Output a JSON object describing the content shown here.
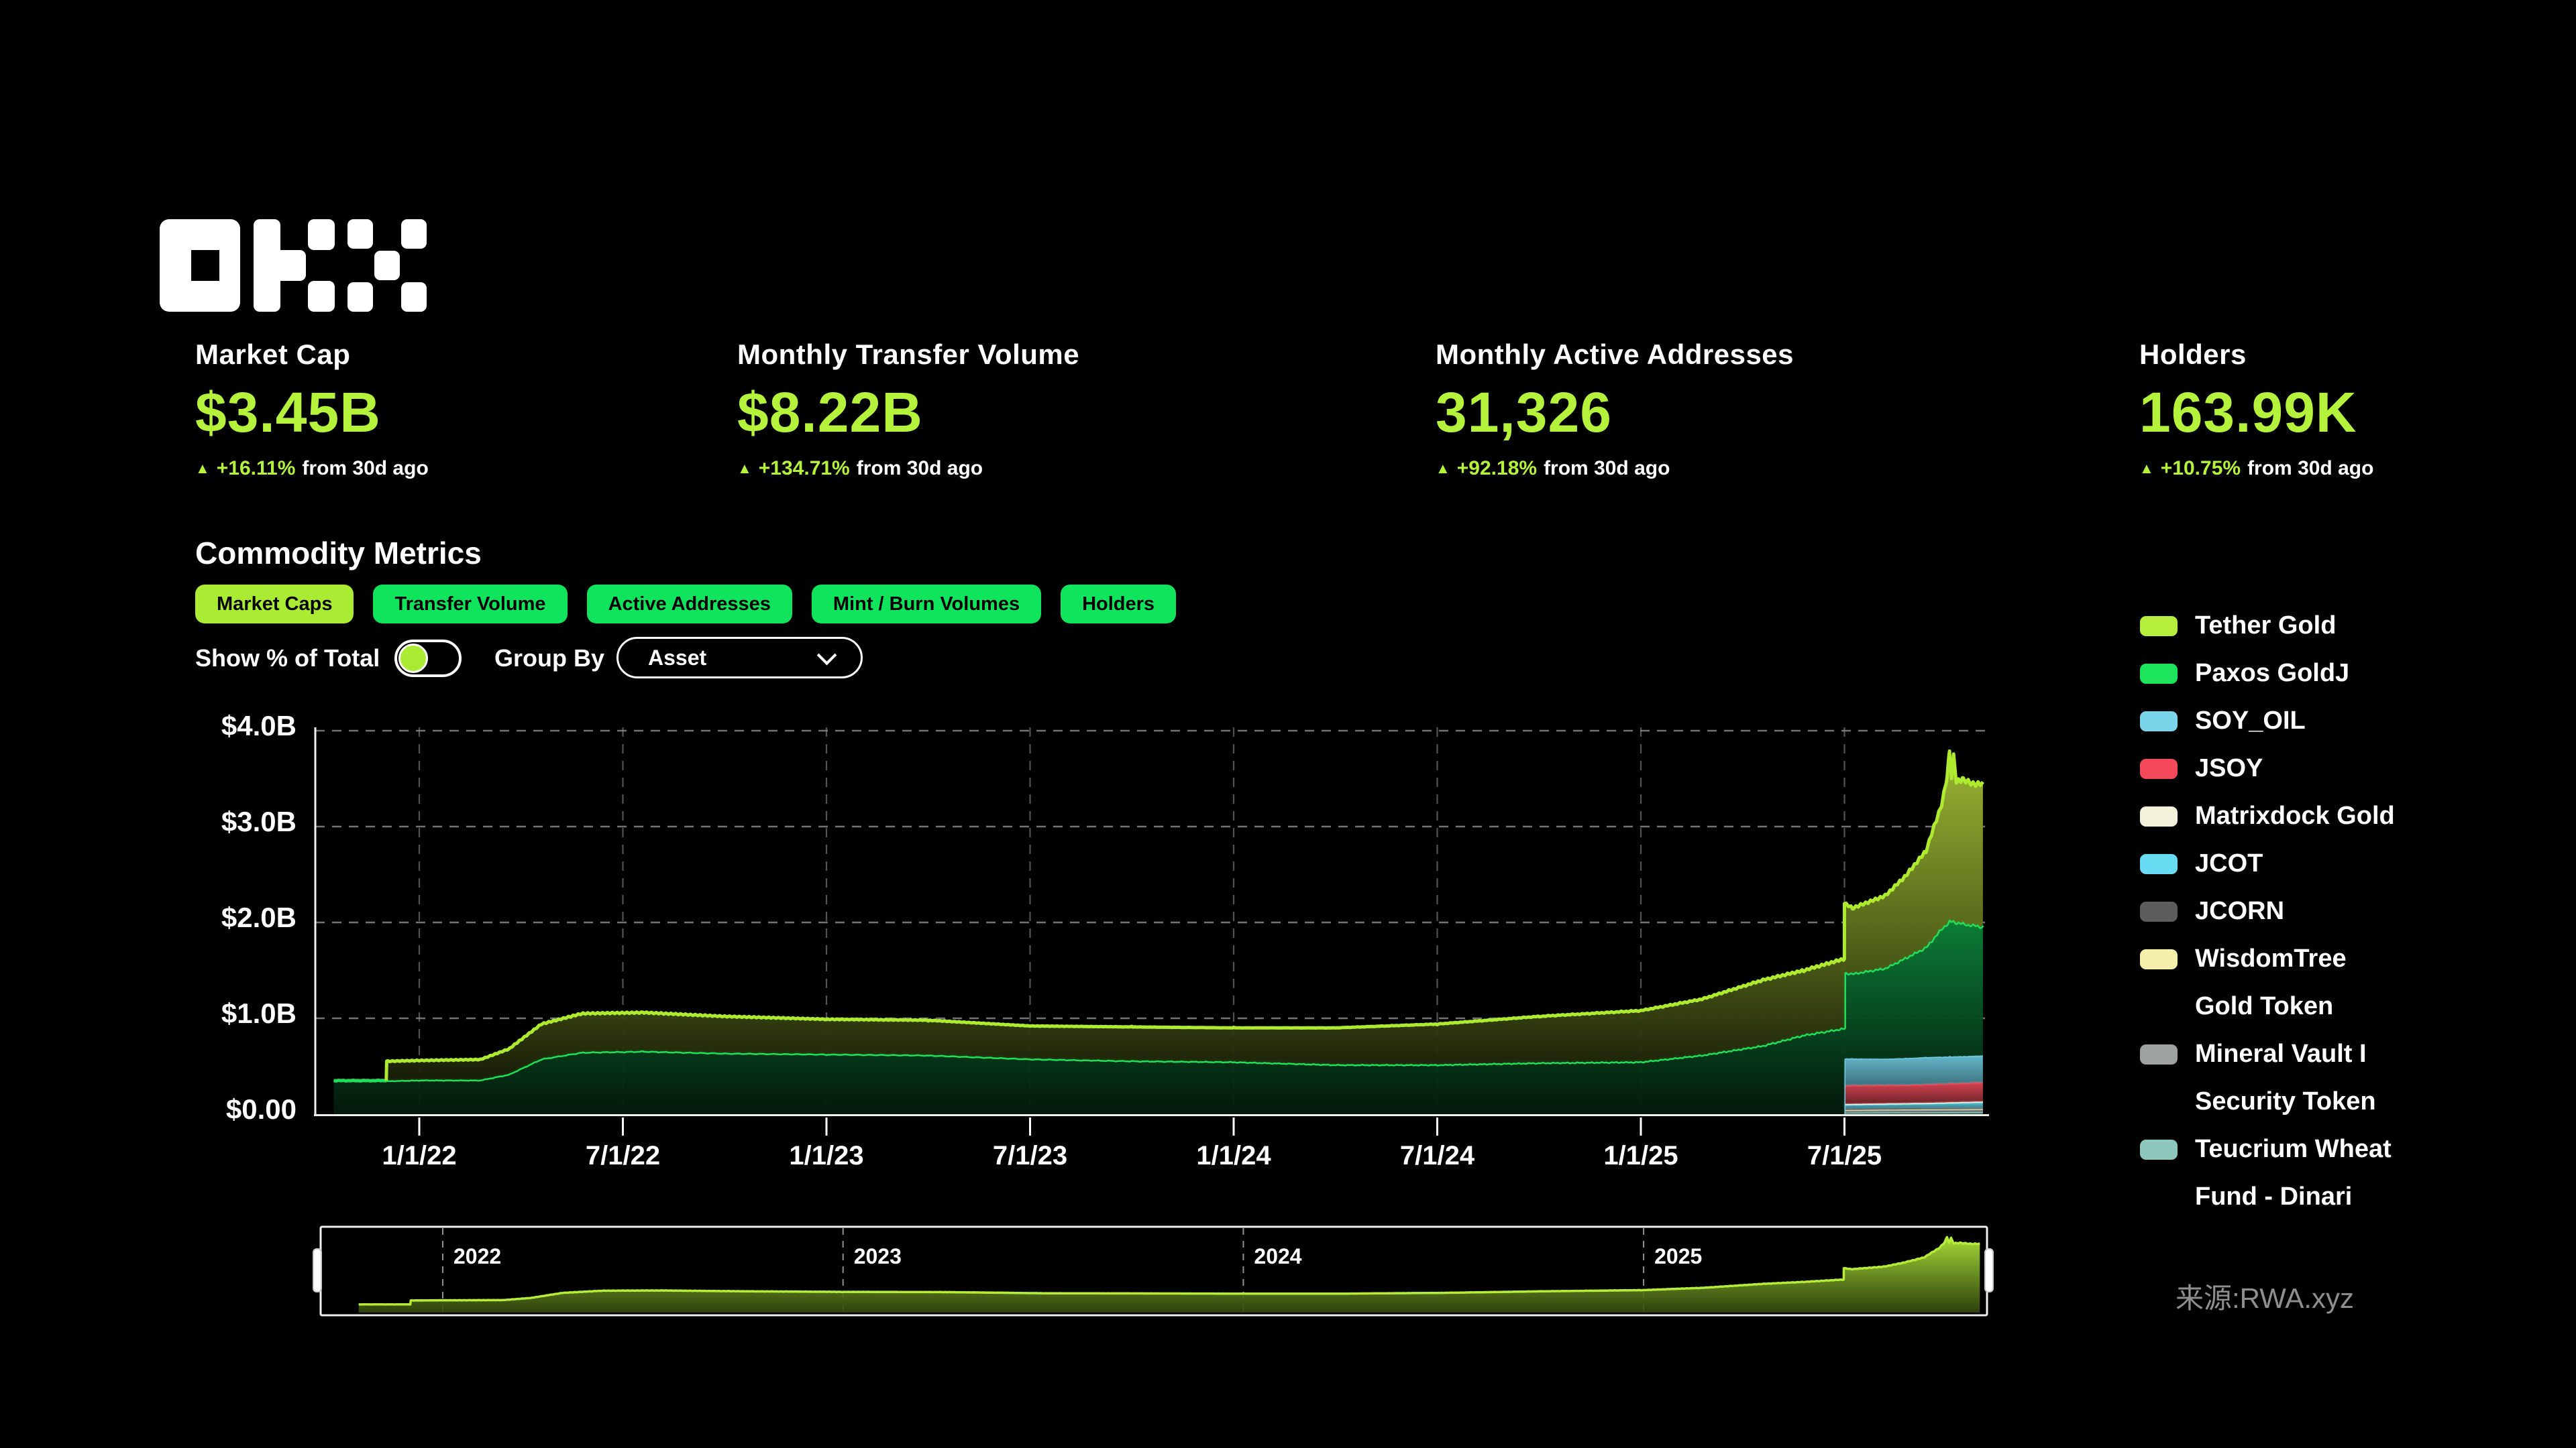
{
  "page": {
    "background": "#000000",
    "source_note": "来源:RWA.xyz"
  },
  "colors": {
    "lime": "#b5f23c",
    "tab_green": "#0fe45c",
    "tab_active": "#a9ec33",
    "muted": "#8f8f8f"
  },
  "stats": [
    {
      "label": "Market Cap",
      "value": "$3.45B",
      "delta": "+16.11%",
      "delta_suffix": "from 30d ago"
    },
    {
      "label": "Monthly Transfer Volume",
      "value": "$8.22B",
      "delta": "+134.71%",
      "delta_suffix": "from 30d ago"
    },
    {
      "label": "Monthly Active Addresses",
      "value": "31,326",
      "delta": "+92.18%",
      "delta_suffix": "from 30d ago"
    },
    {
      "label": "Holders",
      "value": "163.99K",
      "delta": "+10.75%",
      "delta_suffix": "from 30d ago"
    }
  ],
  "section": {
    "title": "Commodity Metrics"
  },
  "tabs": [
    {
      "label": "Market Caps",
      "active": true
    },
    {
      "label": "Transfer Volume",
      "active": false
    },
    {
      "label": "Active Addresses",
      "active": false
    },
    {
      "label": "Mint / Burn Volumes",
      "active": false
    },
    {
      "label": "Holders",
      "active": false
    }
  ],
  "controls": {
    "show_pct_label": "Show % of Total",
    "show_pct_on": false,
    "group_by_label": "Group By",
    "group_by_value": "Asset"
  },
  "legend": [
    {
      "label": "Tether Gold",
      "label2": "",
      "color": "#b5ee3d"
    },
    {
      "label": "Paxos GoldJ",
      "label2": "",
      "color": "#1ce45b"
    },
    {
      "label": "SOY_OIL",
      "label2": "",
      "color": "#7ad4ea"
    },
    {
      "label": "JSOY",
      "label2": "",
      "color": "#f3495b"
    },
    {
      "label": "Matrixdock Gold",
      "label2": "",
      "color": "#f4f1da"
    },
    {
      "label": "JCOT",
      "label2": "",
      "color": "#69dcf3"
    },
    {
      "label": "JCORN",
      "label2": "",
      "color": "#5d5d5d"
    },
    {
      "label": "WisdomTree",
      "label2": "Gold Token",
      "color": "#f4efab"
    },
    {
      "label": "Mineral Vault I",
      "label2": "Security Token",
      "color": "#9ea3a1"
    },
    {
      "label": "Teucrium Wheat",
      "label2": "Fund - Dinari",
      "color": "#8ec8bc"
    }
  ],
  "chart_data": {
    "type": "area",
    "stacked": true,
    "grid": true,
    "legend_position": "right",
    "unit": "USD billions (market cap)",
    "x_domain": [
      2021.79,
      2025.84
    ],
    "ylim": [
      0,
      4.2
    ],
    "noise_amplitude": 1,
    "y_ticks": [
      {
        "v": 0,
        "label": "$0.00"
      },
      {
        "v": 1,
        "label": "$1.0B"
      },
      {
        "v": 2,
        "label": "$2.0B"
      },
      {
        "v": 3,
        "label": "$3.0B"
      },
      {
        "v": 4,
        "label": "$4.0B"
      }
    ],
    "x_ticks": [
      {
        "t": 2022.0,
        "label": "1/1/22"
      },
      {
        "t": 2022.5,
        "label": "7/1/22"
      },
      {
        "t": 2023.0,
        "label": "1/1/23"
      },
      {
        "t": 2023.5,
        "label": "7/1/23"
      },
      {
        "t": 2024.0,
        "label": "1/1/24"
      },
      {
        "t": 2024.5,
        "label": "7/1/24"
      },
      {
        "t": 2025.0,
        "label": "1/1/25"
      },
      {
        "t": 2025.5,
        "label": "7/1/25"
      }
    ],
    "mini_year_ticks": [
      {
        "t": 2022,
        "label": "2022"
      },
      {
        "t": 2023,
        "label": "2023"
      },
      {
        "t": 2024,
        "label": "2024"
      },
      {
        "t": 2025,
        "label": "2025"
      }
    ],
    "series": [
      {
        "id": "teucrium",
        "name": "Teucrium Wheat Fund - Dinari",
        "color": "#8cc7bb",
        "noise": 0.02,
        "anchors": [
          [
            2025.4999,
            0
          ],
          [
            2025.5,
            0.017
          ],
          [
            2025.84,
            0.022
          ]
        ]
      },
      {
        "id": "mineral",
        "name": "Mineral Vault I Security Token",
        "color": "#9aa0a0",
        "noise": 0.02,
        "anchors": [
          [
            2025.4999,
            0
          ],
          [
            2025.5,
            0.022
          ],
          [
            2025.84,
            0.028
          ]
        ]
      },
      {
        "id": "wisdomtree",
        "name": "WisdomTree Gold Token",
        "color": "#efe9a8",
        "noise": 0.02,
        "anchors": [
          [
            2025.4999,
            0
          ],
          [
            2025.5,
            0.009
          ],
          [
            2025.84,
            0.009
          ]
        ]
      },
      {
        "id": "jcorn",
        "name": "JCORN",
        "color": "#636363",
        "noise": 0.02,
        "anchors": [
          [
            2025.4999,
            0
          ],
          [
            2025.5,
            0.007
          ],
          [
            2025.84,
            0.007
          ]
        ]
      },
      {
        "id": "jcot",
        "name": "JCOT",
        "color": "#68d9f0",
        "noise": 0.03,
        "anchors": [
          [
            2025.4999,
            0
          ],
          [
            2025.5,
            0.045
          ],
          [
            2025.7,
            0.05
          ],
          [
            2025.84,
            0.06
          ]
        ]
      },
      {
        "id": "matrixdock",
        "name": "Matrixdock Gold",
        "color": "#f2efd8",
        "noise": 0.01,
        "anchors": [
          [
            2025.4999,
            0
          ],
          [
            2025.5,
            0.006
          ],
          [
            2025.84,
            0.006
          ]
        ]
      },
      {
        "id": "jsoy",
        "name": "JSOY",
        "color": "#ef4b5a",
        "noise": 0.02,
        "anchors": [
          [
            2025.4999,
            0
          ],
          [
            2025.5,
            0.195
          ],
          [
            2025.65,
            0.19
          ],
          [
            2025.84,
            0.2
          ]
        ]
      },
      {
        "id": "soy_oil",
        "name": "SOY_OIL",
        "color": "#6fcce2",
        "noise": 0.02,
        "anchors": [
          [
            2025.4999,
            0
          ],
          [
            2025.5,
            0.28
          ],
          [
            2025.6,
            0.275
          ],
          [
            2025.7,
            0.285
          ],
          [
            2025.84,
            0.28
          ]
        ]
      },
      {
        "id": "paxos",
        "name": "Paxos GoldJ",
        "color": "#1fe05a",
        "noise": 0.012,
        "anchors": [
          [
            2021.789,
            0
          ],
          [
            2021.79,
            0.35
          ],
          [
            2021.9,
            0.35
          ],
          [
            2022.0,
            0.36
          ],
          [
            2022.15,
            0.36
          ],
          [
            2022.22,
            0.42
          ],
          [
            2022.3,
            0.58
          ],
          [
            2022.4,
            0.65
          ],
          [
            2022.55,
            0.66
          ],
          [
            2022.75,
            0.64
          ],
          [
            2023.0,
            0.63
          ],
          [
            2023.25,
            0.62
          ],
          [
            2023.5,
            0.58
          ],
          [
            2023.75,
            0.56
          ],
          [
            2024.0,
            0.55
          ],
          [
            2024.25,
            0.52
          ],
          [
            2024.5,
            0.52
          ],
          [
            2024.75,
            0.54
          ],
          [
            2025.0,
            0.55
          ],
          [
            2025.15,
            0.62
          ],
          [
            2025.3,
            0.72
          ],
          [
            2025.4,
            0.83
          ],
          [
            2025.499,
            0.9
          ],
          [
            2025.52,
            0.89
          ],
          [
            2025.6,
            0.95
          ],
          [
            2025.7,
            1.15
          ],
          [
            2025.74,
            1.35
          ],
          [
            2025.76,
            1.42
          ],
          [
            2025.8,
            1.38
          ],
          [
            2025.84,
            1.35
          ]
        ]
      },
      {
        "id": "tether",
        "name": "Tether Gold",
        "color": "#aeea2f",
        "noise": 0.022,
        "anchors": [
          [
            2021.919,
            0
          ],
          [
            2021.92,
            0.2
          ],
          [
            2022.0,
            0.2
          ],
          [
            2022.15,
            0.21
          ],
          [
            2022.22,
            0.26
          ],
          [
            2022.3,
            0.36
          ],
          [
            2022.4,
            0.4
          ],
          [
            2022.55,
            0.4
          ],
          [
            2022.75,
            0.38
          ],
          [
            2023.0,
            0.36
          ],
          [
            2023.25,
            0.36
          ],
          [
            2023.5,
            0.34
          ],
          [
            2023.75,
            0.35
          ],
          [
            2024.0,
            0.35
          ],
          [
            2024.25,
            0.38
          ],
          [
            2024.5,
            0.42
          ],
          [
            2024.75,
            0.48
          ],
          [
            2025.0,
            0.53
          ],
          [
            2025.15,
            0.58
          ],
          [
            2025.3,
            0.68
          ],
          [
            2025.4,
            0.67
          ],
          [
            2025.499,
            0.72
          ],
          [
            2025.52,
            0.68
          ],
          [
            2025.6,
            0.75
          ],
          [
            2025.65,
            0.85
          ],
          [
            2025.7,
            1.0
          ],
          [
            2025.74,
            1.3
          ],
          [
            2025.752,
            1.52
          ],
          [
            2025.758,
            1.78
          ],
          [
            2025.763,
            1.5
          ],
          [
            2025.768,
            1.72
          ],
          [
            2025.775,
            1.45
          ],
          [
            2025.79,
            1.5
          ],
          [
            2025.81,
            1.47
          ],
          [
            2025.84,
            1.48
          ]
        ]
      }
    ]
  }
}
